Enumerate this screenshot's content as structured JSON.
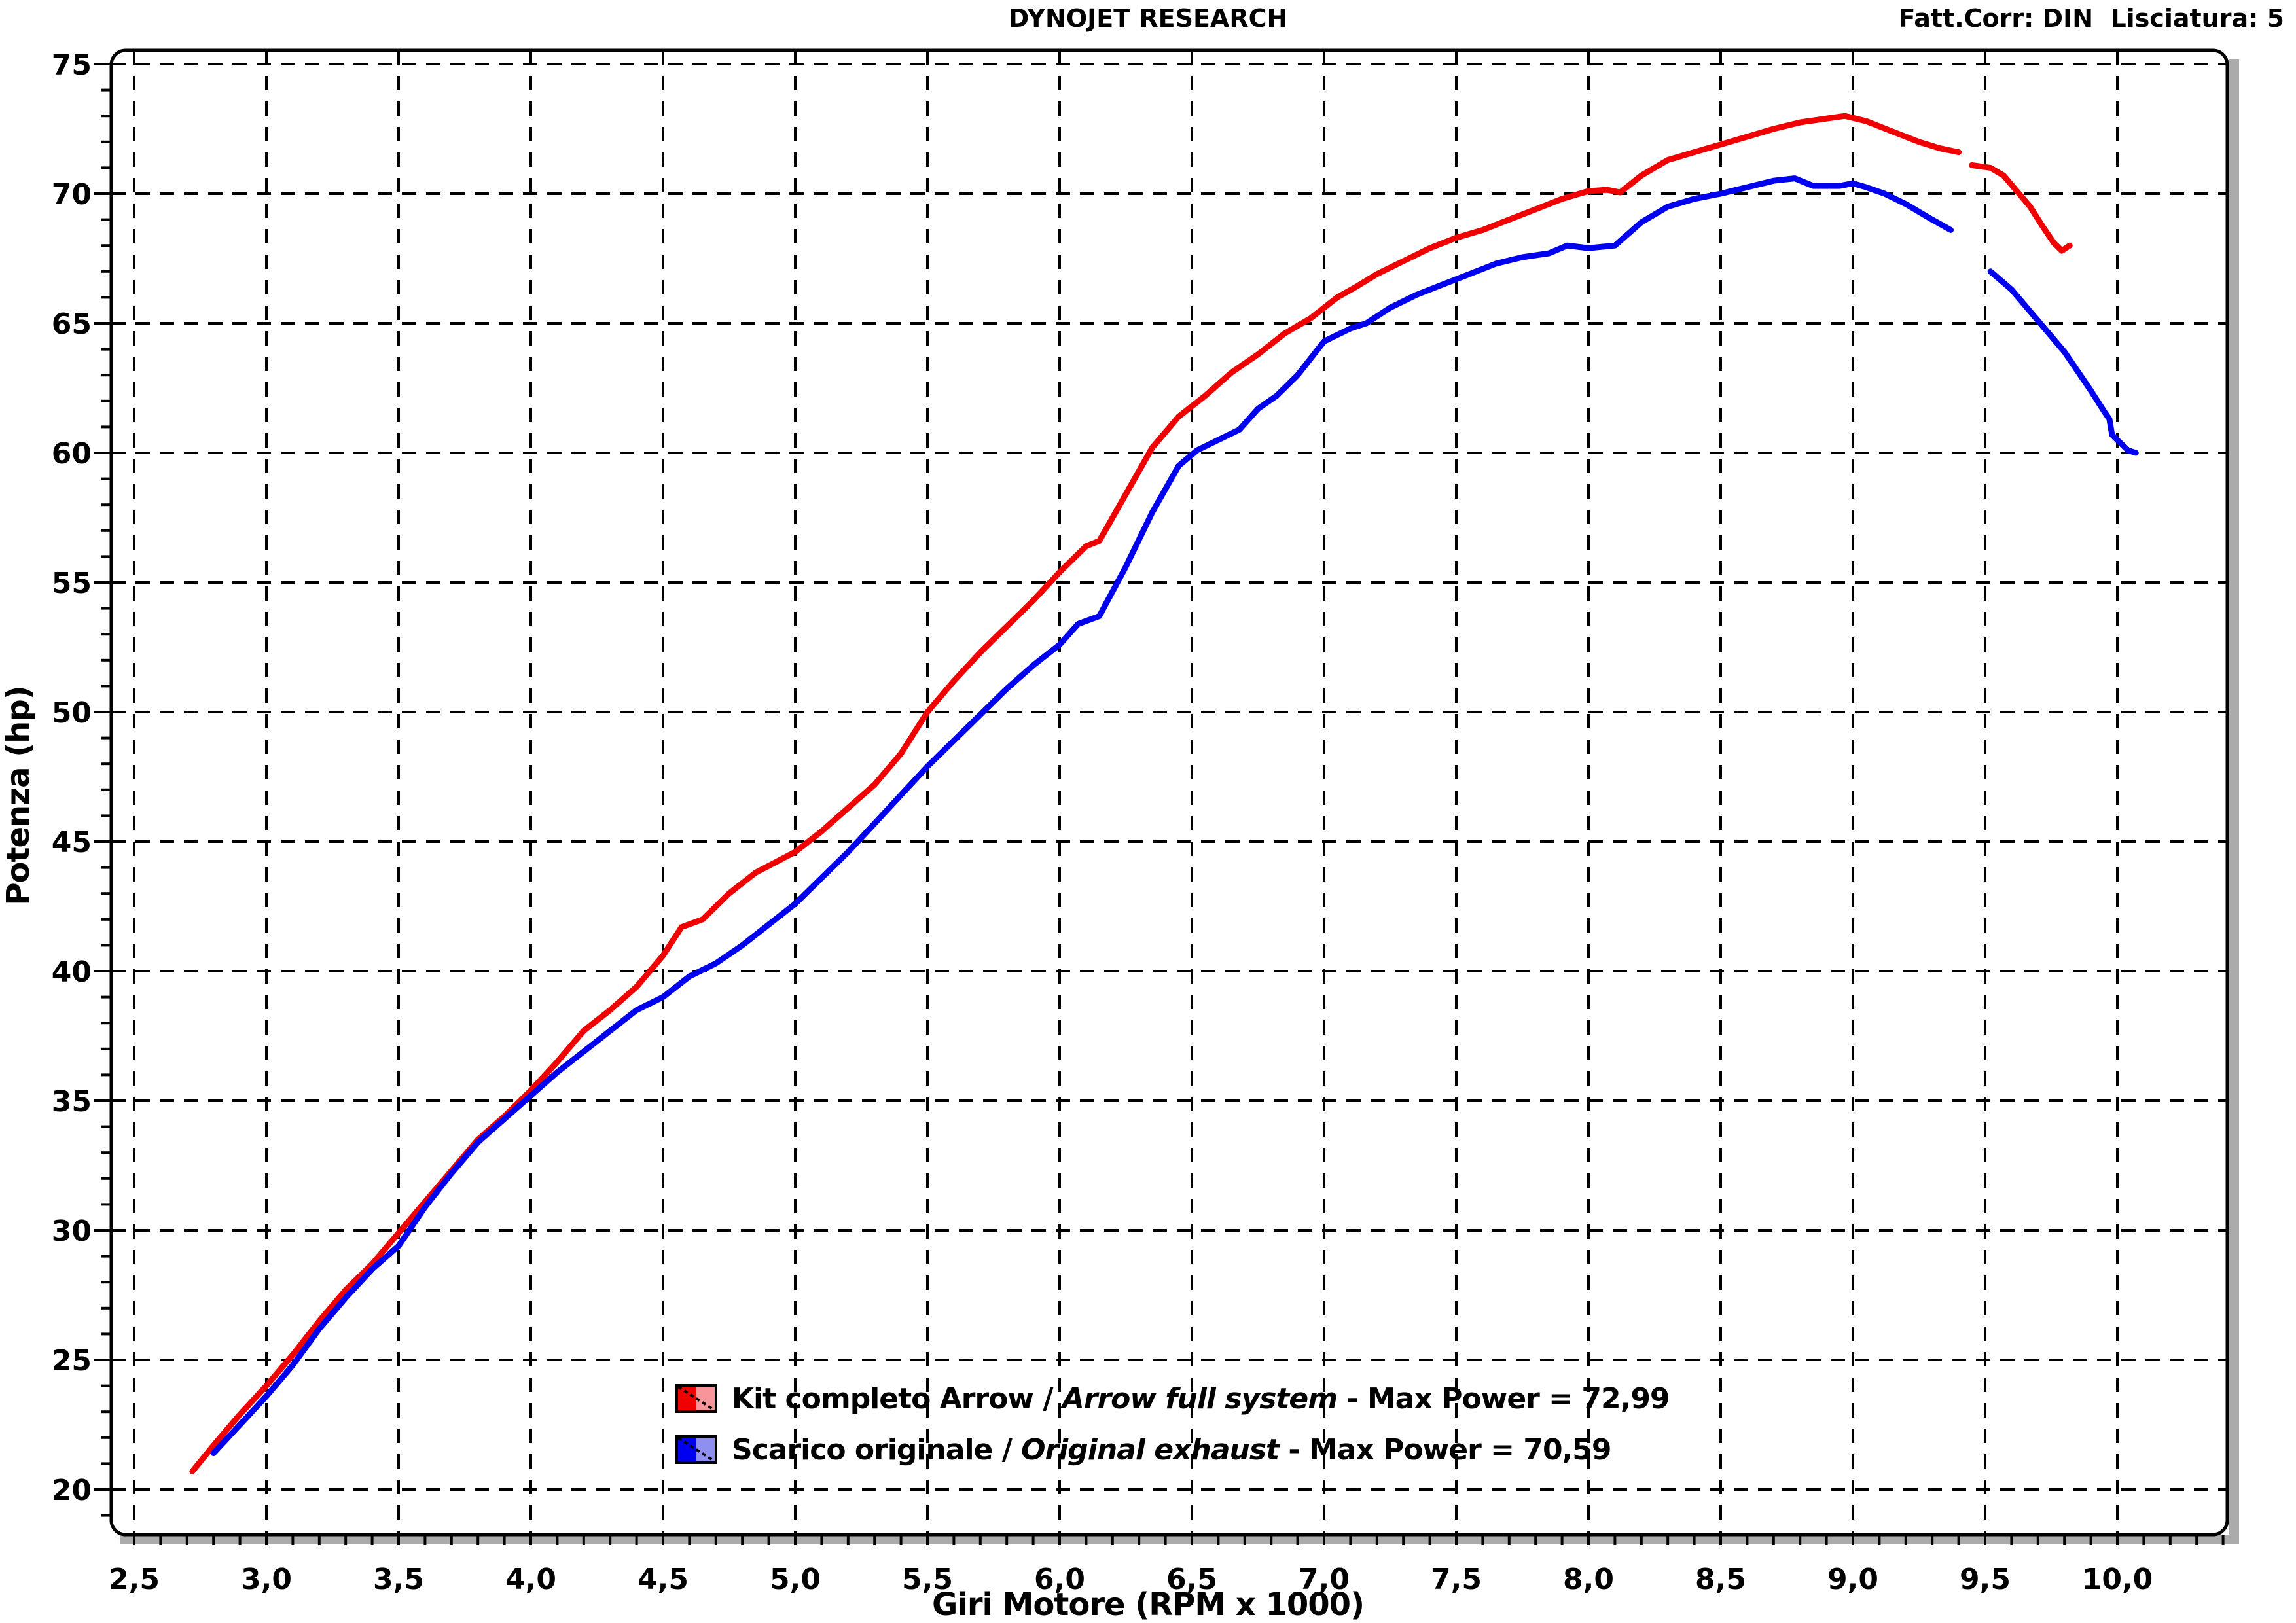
{
  "header": {
    "title": "DYNOJET RESEARCH",
    "correction": "Fatt.Corr: DIN  Lisciatura: 5"
  },
  "chart_data": {
    "type": "line",
    "title": "DYNOJET RESEARCH",
    "xlabel": "Giri Motore (RPM x 1000)",
    "ylabel": "Potenza (hp)",
    "grid": "dashed",
    "legend_position": "bottom-center-inside",
    "x_axis": {
      "min": 2.5,
      "max": 10.0,
      "major_step": 0.5,
      "minor_step": 0.1,
      "tick_values": [
        2.5,
        3.0,
        3.5,
        4.0,
        4.5,
        5.0,
        5.5,
        6.0,
        6.5,
        7.0,
        7.5,
        8.0,
        8.5,
        9.0,
        9.5,
        10.0
      ],
      "tick_labels": [
        "2,5",
        "3,0",
        "3,5",
        "4,0",
        "4,5",
        "5,0",
        "5,5",
        "6,0",
        "6,5",
        "7,0",
        "7,5",
        "8,0",
        "8,5",
        "9,0",
        "9,5",
        "10,0"
      ]
    },
    "y_axis": {
      "min": 20,
      "max": 75,
      "major_step": 5,
      "minor_step": 1,
      "tick_values": [
        20,
        25,
        30,
        35,
        40,
        45,
        50,
        55,
        60,
        65,
        70,
        75
      ],
      "tick_labels": [
        "20",
        "25",
        "30",
        "35",
        "40",
        "45",
        "50",
        "55",
        "60",
        "65",
        "70",
        "75"
      ]
    },
    "frame": {
      "stroke": "#000000",
      "shadow": "#ababab",
      "fill": "#ffffff"
    },
    "series": [
      {
        "name": "Kit completo Arrow / Arrow full system",
        "max_power": "72,99",
        "color": "#f00000",
        "color_light": "#f8959b",
        "segments": [
          [
            [
              2.72,
              20.7
            ],
            [
              2.8,
              21.7
            ],
            [
              2.9,
              22.9
            ],
            [
              3.0,
              24.0
            ],
            [
              3.1,
              25.2
            ],
            [
              3.2,
              26.5
            ],
            [
              3.3,
              27.7
            ],
            [
              3.4,
              28.7
            ],
            [
              3.5,
              29.9
            ],
            [
              3.6,
              31.1
            ],
            [
              3.7,
              32.3
            ],
            [
              3.8,
              33.5
            ],
            [
              3.9,
              34.4
            ],
            [
              4.0,
              35.4
            ],
            [
              4.1,
              36.5
            ],
            [
              4.2,
              37.7
            ],
            [
              4.3,
              38.5
            ],
            [
              4.4,
              39.4
            ],
            [
              4.5,
              40.6
            ],
            [
              4.57,
              41.7
            ],
            [
              4.65,
              42.0
            ],
            [
              4.75,
              43.0
            ],
            [
              4.85,
              43.8
            ],
            [
              5.0,
              44.6
            ],
            [
              5.1,
              45.4
            ],
            [
              5.2,
              46.3
            ],
            [
              5.3,
              47.2
            ],
            [
              5.4,
              48.4
            ],
            [
              5.5,
              50.0
            ],
            [
              5.6,
              51.2
            ],
            [
              5.7,
              52.3
            ],
            [
              5.8,
              53.3
            ],
            [
              5.9,
              54.3
            ],
            [
              6.0,
              55.4
            ],
            [
              6.1,
              56.4
            ],
            [
              6.15,
              56.6
            ],
            [
              6.25,
              58.4
            ],
            [
              6.35,
              60.2
            ],
            [
              6.45,
              61.4
            ],
            [
              6.55,
              62.2
            ],
            [
              6.65,
              63.1
            ],
            [
              6.75,
              63.8
            ],
            [
              6.85,
              64.6
            ],
            [
              6.95,
              65.2
            ],
            [
              7.05,
              66.0
            ],
            [
              7.12,
              66.4
            ],
            [
              7.2,
              66.9
            ],
            [
              7.3,
              67.4
            ],
            [
              7.4,
              67.9
            ],
            [
              7.5,
              68.3
            ],
            [
              7.6,
              68.6
            ],
            [
              7.7,
              69.0
            ],
            [
              7.8,
              69.4
            ],
            [
              7.9,
              69.8
            ],
            [
              8.0,
              70.1
            ],
            [
              8.07,
              70.15
            ],
            [
              8.12,
              70.05
            ],
            [
              8.2,
              70.7
            ],
            [
              8.3,
              71.3
            ],
            [
              8.4,
              71.6
            ],
            [
              8.5,
              71.9
            ],
            [
              8.6,
              72.2
            ],
            [
              8.7,
              72.5
            ],
            [
              8.8,
              72.75
            ],
            [
              8.9,
              72.9
            ],
            [
              8.97,
              73.0
            ],
            [
              9.05,
              72.8
            ],
            [
              9.15,
              72.4
            ],
            [
              9.25,
              72.0
            ],
            [
              9.33,
              71.75
            ],
            [
              9.4,
              71.6
            ]
          ],
          [
            [
              9.45,
              71.1
            ],
            [
              9.52,
              71.0
            ],
            [
              9.57,
              70.7
            ],
            [
              9.62,
              70.1
            ],
            [
              9.67,
              69.5
            ],
            [
              9.72,
              68.7
            ],
            [
              9.76,
              68.1
            ],
            [
              9.79,
              67.8
            ],
            [
              9.82,
              68.0
            ]
          ]
        ]
      },
      {
        "name": "Scarico originale / Original exhaust",
        "max_power": "70,59",
        "color": "#0000f0",
        "color_light": "#8f8ff2",
        "segments": [
          [
            [
              2.8,
              21.4
            ],
            [
              2.9,
              22.5
            ],
            [
              3.0,
              23.6
            ],
            [
              3.1,
              24.8
            ],
            [
              3.2,
              26.2
            ],
            [
              3.3,
              27.4
            ],
            [
              3.4,
              28.5
            ],
            [
              3.5,
              29.4
            ],
            [
              3.6,
              30.9
            ],
            [
              3.7,
              32.2
            ],
            [
              3.8,
              33.4
            ],
            [
              3.9,
              34.3
            ],
            [
              4.0,
              35.2
            ],
            [
              4.1,
              36.1
            ],
            [
              4.2,
              36.9
            ],
            [
              4.3,
              37.7
            ],
            [
              4.4,
              38.5
            ],
            [
              4.5,
              39.0
            ],
            [
              4.6,
              39.8
            ],
            [
              4.7,
              40.3
            ],
            [
              4.8,
              41.0
            ],
            [
              4.9,
              41.8
            ],
            [
              5.0,
              42.6
            ],
            [
              5.1,
              43.6
            ],
            [
              5.2,
              44.6
            ],
            [
              5.3,
              45.7
            ],
            [
              5.4,
              46.8
            ],
            [
              5.5,
              47.9
            ],
            [
              5.6,
              48.9
            ],
            [
              5.7,
              49.9
            ],
            [
              5.8,
              50.9
            ],
            [
              5.9,
              51.8
            ],
            [
              6.0,
              52.6
            ],
            [
              6.07,
              53.4
            ],
            [
              6.15,
              53.7
            ],
            [
              6.25,
              55.6
            ],
            [
              6.35,
              57.7
            ],
            [
              6.45,
              59.5
            ],
            [
              6.52,
              60.1
            ],
            [
              6.6,
              60.5
            ],
            [
              6.68,
              60.9
            ],
            [
              6.75,
              61.7
            ],
            [
              6.82,
              62.2
            ],
            [
              6.9,
              63.0
            ],
            [
              7.0,
              64.3
            ],
            [
              7.1,
              64.8
            ],
            [
              7.16,
              65.0
            ],
            [
              7.25,
              65.6
            ],
            [
              7.35,
              66.1
            ],
            [
              7.45,
              66.5
            ],
            [
              7.55,
              66.9
            ],
            [
              7.65,
              67.3
            ],
            [
              7.75,
              67.55
            ],
            [
              7.85,
              67.7
            ],
            [
              7.92,
              68.0
            ],
            [
              8.0,
              67.9
            ],
            [
              8.1,
              68.0
            ],
            [
              8.2,
              68.9
            ],
            [
              8.3,
              69.5
            ],
            [
              8.4,
              69.8
            ],
            [
              8.5,
              70.0
            ],
            [
              8.6,
              70.25
            ],
            [
              8.7,
              70.5
            ],
            [
              8.78,
              70.59
            ],
            [
              8.85,
              70.3
            ],
            [
              8.95,
              70.3
            ],
            [
              9.0,
              70.4
            ],
            [
              9.05,
              70.25
            ],
            [
              9.12,
              70.0
            ],
            [
              9.2,
              69.6
            ],
            [
              9.3,
              69.0
            ],
            [
              9.37,
              68.6
            ]
          ],
          [
            [
              9.52,
              67.0
            ],
            [
              9.6,
              66.3
            ],
            [
              9.7,
              65.1
            ],
            [
              9.8,
              63.9
            ],
            [
              9.9,
              62.4
            ],
            [
              9.95,
              61.6
            ],
            [
              9.97,
              61.3
            ],
            [
              9.98,
              60.7
            ],
            [
              10.01,
              60.4
            ],
            [
              10.04,
              60.1
            ],
            [
              10.07,
              60.0
            ]
          ]
        ]
      }
    ]
  },
  "legend": {
    "rows": [
      {
        "prefix": "Kit completo Arrow / ",
        "italic": "Arrow full system",
        "suffix": " - Max Power = 72,99"
      },
      {
        "prefix": "Scarico originale / ",
        "italic": "Original exhaust",
        "suffix": " - Max Power = 70,59"
      }
    ]
  }
}
